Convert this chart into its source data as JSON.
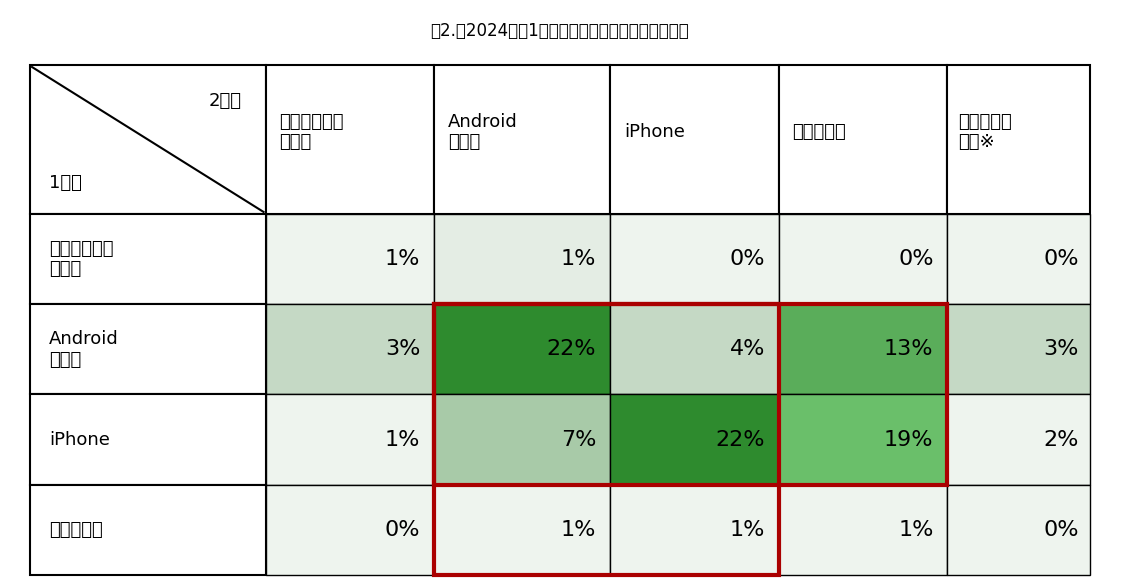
{
  "title": "表2.　2024年の1台目と２台目の組み合わせの割合",
  "col_headers": [
    "フィーチャー\nフォン",
    "Android\nスマホ",
    "iPhone",
    "タブレット",
    "データ通信\n機器※"
  ],
  "row_headers": [
    "フィーチャー\nフォン",
    "Android\nスマホ",
    "iPhone",
    "タブレット"
  ],
  "header_row_label_top": "2台目",
  "header_row_label_bottom": "1台目",
  "values": [
    [
      1,
      1,
      0,
      0,
      0
    ],
    [
      3,
      22,
      4,
      13,
      3
    ],
    [
      1,
      7,
      22,
      19,
      2
    ],
    [
      0,
      1,
      1,
      1,
      0
    ]
  ],
  "cell_colors": [
    [
      "#eef4ee",
      "#e4ede4",
      "#eef4ee",
      "#eef4ee",
      "#eef4ee"
    ],
    [
      "#c5d9c5",
      "#2e8b2e",
      "#c5d9c5",
      "#5aad5a",
      "#c5d9c5"
    ],
    [
      "#eef4ee",
      "#a8caa8",
      "#2e8b2e",
      "#6abf6a",
      "#eef4ee"
    ],
    [
      "#eef4ee",
      "#eef4ee",
      "#eef4ee",
      "#eef4ee",
      "#eef4ee"
    ]
  ],
  "background_color": "#ffffff",
  "title_fontsize": 12,
  "cell_fontsize": 16,
  "header_fontsize": 14,
  "red_rect1": {
    "rows": [
      1,
      2
    ],
    "cols": [
      1,
      3
    ]
  },
  "red_rect2": {
    "rows": [
      1,
      3
    ],
    "cols": [
      1,
      2
    ]
  }
}
